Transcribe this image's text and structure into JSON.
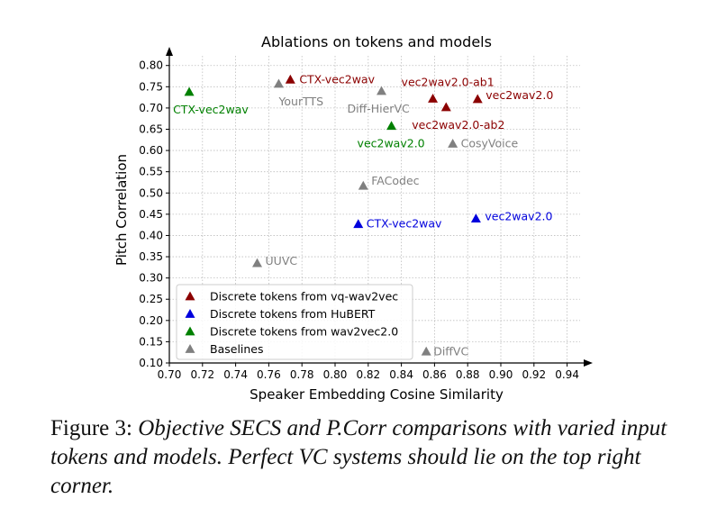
{
  "chart_data": {
    "type": "scatter",
    "title": "Ablations on tokens and models",
    "xlabel": "Speaker Embedding Cosine Similarity",
    "ylabel": "Pitch Correlation",
    "xlim": [
      0.7,
      0.95
    ],
    "ylim": [
      0.1,
      0.81
    ],
    "xticks": [
      "0.70",
      "0.72",
      "0.74",
      "0.76",
      "0.78",
      "0.80",
      "0.82",
      "0.84",
      "0.86",
      "0.88",
      "0.90",
      "0.92",
      "0.94"
    ],
    "yticks": [
      "0.10",
      "0.15",
      "0.20",
      "0.25",
      "0.30",
      "0.35",
      "0.40",
      "0.45",
      "0.50",
      "0.55",
      "0.60",
      "0.65",
      "0.70",
      "0.75",
      "0.80"
    ],
    "grid": true,
    "legend_position": "lower-left",
    "series": [
      {
        "name": "Discrete tokens from vq-wav2vec",
        "color": "#8b0000",
        "points": [
          {
            "label": "CTX-vec2wav",
            "x": 0.773,
            "y": 0.767
          },
          {
            "label": "vec2wav2.0-ab1",
            "x": 0.859,
            "y": 0.722
          },
          {
            "label": "vec2wav2.0-ab2",
            "x": 0.867,
            "y": 0.702
          },
          {
            "label": "vec2wav2.0",
            "x": 0.886,
            "y": 0.721
          }
        ]
      },
      {
        "name": "Discrete tokens from HuBERT",
        "color": "#0000dd",
        "points": [
          {
            "label": "CTX-vec2wav",
            "x": 0.814,
            "y": 0.427
          },
          {
            "label": "vec2wav2.0",
            "x": 0.885,
            "y": 0.44
          }
        ]
      },
      {
        "name": "Discrete tokens from wav2vec2.0",
        "color": "#008000",
        "points": [
          {
            "label": "CTX-vec2wav",
            "x": 0.712,
            "y": 0.738
          },
          {
            "label": "vec2wav2.0",
            "x": 0.834,
            "y": 0.658
          }
        ]
      },
      {
        "name": "Baselines",
        "color": "#808080",
        "points": [
          {
            "label": "YourTTS",
            "x": 0.766,
            "y": 0.757
          },
          {
            "label": "Diff-HierVC",
            "x": 0.828,
            "y": 0.74
          },
          {
            "label": "CosyVoice",
            "x": 0.871,
            "y": 0.616
          },
          {
            "label": "FACodec",
            "x": 0.817,
            "y": 0.517
          },
          {
            "label": "UUVC",
            "x": 0.753,
            "y": 0.335
          },
          {
            "label": "DiffVC",
            "x": 0.855,
            "y": 0.127
          }
        ]
      }
    ]
  },
  "caption": {
    "label": "Figure 3:",
    "text": "Objective SECS and P.Corr comparisons with varied input tokens and models. Perfect VC systems should lie on the top right corner."
  }
}
